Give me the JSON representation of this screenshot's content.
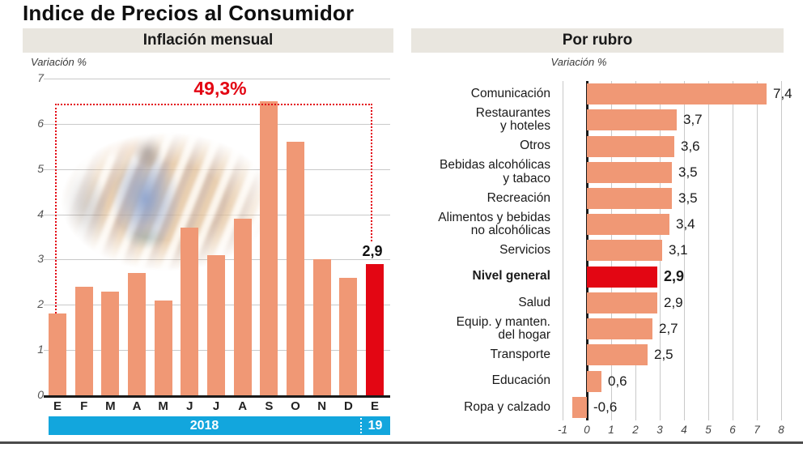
{
  "title": "Indice de Precios al Consumidor",
  "colors": {
    "bar_salmon": "#F09875",
    "highlight_red": "#E30613",
    "band_cyan": "#12A6DD",
    "header_bg": "#E9E6DF",
    "grid": "#C9C9C9",
    "axis": "#1A1A1A"
  },
  "chart_data": [
    {
      "type": "bar",
      "title": "Inflación mensual",
      "ylabel": "Variación %",
      "categories": [
        "E",
        "F",
        "M",
        "A",
        "M",
        "J",
        "J",
        "A",
        "S",
        "O",
        "N",
        "D",
        "E"
      ],
      "values": [
        1.8,
        2.4,
        2.3,
        2.7,
        2.1,
        3.7,
        3.1,
        3.9,
        6.5,
        5.6,
        3.0,
        2.6,
        2.9
      ],
      "highlight_index": 12,
      "ylim": [
        0,
        7
      ],
      "yticks": [
        0,
        1,
        2,
        3,
        4,
        5,
        6,
        7
      ],
      "grid": true,
      "legend_position": "none",
      "annotations": {
        "period_total_label": "49,3%",
        "last_bar_label": "2,9"
      },
      "x_bands": [
        {
          "label": "2018",
          "span": 12
        },
        {
          "label": "19",
          "span": 1
        }
      ]
    },
    {
      "type": "bar",
      "orientation": "horizontal",
      "title": "Por rubro",
      "xlabel": "Variación %",
      "xlim": [
        -1,
        8
      ],
      "xticks": [
        "-1",
        "0",
        "1",
        "2",
        "3",
        "4",
        "5",
        "6",
        "7",
        "8"
      ],
      "grid": true,
      "legend_position": "none",
      "rows": [
        {
          "label": "Comunicación",
          "value": 7.4,
          "value_label": "7,4"
        },
        {
          "label": "Restaurantes\ny hoteles",
          "value": 3.7,
          "value_label": "3,7"
        },
        {
          "label": "Otros",
          "value": 3.6,
          "value_label": "3,6"
        },
        {
          "label": "Bebidas alcohólicas\ny tabaco",
          "value": 3.5,
          "value_label": "3,5"
        },
        {
          "label": "Recreación",
          "value": 3.5,
          "value_label": "3,5"
        },
        {
          "label": "Alimentos y bebidas\nno alcohólicas",
          "value": 3.4,
          "value_label": "3,4"
        },
        {
          "label": "Servicios",
          "value": 3.1,
          "value_label": "3,1"
        },
        {
          "label": "Nivel general",
          "value": 2.9,
          "value_label": "2,9",
          "highlight": true
        },
        {
          "label": "Salud",
          "value": 2.9,
          "value_label": "2,9"
        },
        {
          "label": "Equip. y manten.\ndel hogar",
          "value": 2.7,
          "value_label": "2,7"
        },
        {
          "label": "Transporte",
          "value": 2.5,
          "value_label": "2,5"
        },
        {
          "label": "Educación",
          "value": 0.6,
          "value_label": "0,6"
        },
        {
          "label": "Ropa y calzado",
          "value": -0.6,
          "value_label": "-0,6"
        }
      ]
    }
  ]
}
